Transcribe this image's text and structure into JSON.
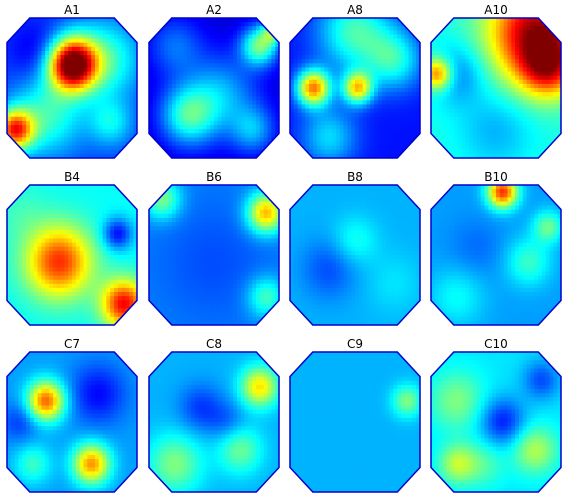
{
  "chart_data": {
    "type": "heatmap",
    "colormap": "jet",
    "color_scale": [
      "#00007f",
      "#0000ff",
      "#007fff",
      "#00ffff",
      "#7fff7f",
      "#ffff00",
      "#ff7f00",
      "#ff0000",
      "#7f0000"
    ],
    "background_color": "#00a5ff",
    "rows": 3,
    "cols": 4,
    "panels": [
      {
        "title": "A1",
        "base": 0.18,
        "blobs": [
          [
            0.5,
            0.33,
            0.13,
            0.85
          ],
          [
            0.06,
            0.8,
            0.1,
            0.6
          ],
          [
            0.75,
            0.3,
            0.2,
            0.25
          ],
          [
            0.3,
            0.7,
            0.2,
            0.25
          ],
          [
            0.25,
            0.25,
            0.15,
            -0.1
          ],
          [
            0.8,
            0.75,
            0.12,
            0.18
          ]
        ]
      },
      {
        "title": "A2",
        "base": 0.08,
        "blobs": [
          [
            0.3,
            0.7,
            0.15,
            0.32
          ],
          [
            0.55,
            0.55,
            0.2,
            0.22
          ],
          [
            0.85,
            0.2,
            0.1,
            0.4
          ],
          [
            0.2,
            0.2,
            0.15,
            0.15
          ],
          [
            0.8,
            0.8,
            0.12,
            0.2
          ],
          [
            0.95,
            0.1,
            0.06,
            0.3
          ]
        ]
      },
      {
        "title": "A8",
        "base": 0.14,
        "blobs": [
          [
            0.18,
            0.5,
            0.09,
            0.6
          ],
          [
            0.52,
            0.5,
            0.08,
            0.5
          ],
          [
            0.5,
            0.1,
            0.2,
            0.3
          ],
          [
            0.8,
            0.3,
            0.15,
            0.25
          ],
          [
            0.3,
            0.85,
            0.15,
            0.2
          ]
        ]
      },
      {
        "title": "A10",
        "base": 0.4,
        "blobs": [
          [
            0.8,
            0.1,
            0.25,
            0.55
          ],
          [
            0.9,
            0.35,
            0.15,
            0.35
          ],
          [
            0.2,
            0.4,
            0.15,
            -0.15
          ],
          [
            0.5,
            0.8,
            0.2,
            -0.1
          ],
          [
            0.05,
            0.4,
            0.08,
            0.4
          ]
        ]
      },
      {
        "title": "B4",
        "base": 0.38,
        "blobs": [
          [
            0.4,
            0.55,
            0.18,
            0.45
          ],
          [
            0.9,
            0.85,
            0.12,
            0.5
          ],
          [
            0.85,
            0.35,
            0.08,
            -0.25
          ],
          [
            0.1,
            0.2,
            0.15,
            0.05
          ]
        ]
      },
      {
        "title": "B6",
        "base": 0.25,
        "blobs": [
          [
            0.5,
            0.55,
            0.3,
            -0.05
          ],
          [
            0.9,
            0.2,
            0.1,
            0.45
          ],
          [
            0.1,
            0.1,
            0.1,
            0.25
          ],
          [
            0.9,
            0.8,
            0.1,
            0.2
          ]
        ]
      },
      {
        "title": "B8",
        "base": 0.3,
        "blobs": [
          [
            0.3,
            0.6,
            0.15,
            -0.1
          ],
          [
            0.5,
            0.4,
            0.12,
            0.1
          ],
          [
            0.8,
            0.7,
            0.15,
            0.05
          ]
        ]
      },
      {
        "title": "B10",
        "base": 0.28,
        "blobs": [
          [
            0.55,
            0.05,
            0.08,
            0.55
          ],
          [
            0.35,
            0.45,
            0.15,
            -0.05
          ],
          [
            0.75,
            0.55,
            0.12,
            0.15
          ],
          [
            0.2,
            0.8,
            0.15,
            0.1
          ],
          [
            0.9,
            0.3,
            0.08,
            0.2
          ]
        ]
      },
      {
        "title": "C7",
        "base": 0.28,
        "blobs": [
          [
            0.3,
            0.35,
            0.1,
            0.5
          ],
          [
            0.65,
            0.8,
            0.1,
            0.45
          ],
          [
            0.7,
            0.3,
            0.15,
            -0.15
          ],
          [
            0.2,
            0.8,
            0.1,
            0.15
          ],
          [
            0.1,
            0.5,
            0.1,
            -0.1
          ]
        ]
      },
      {
        "title": "C8",
        "base": 0.3,
        "blobs": [
          [
            0.4,
            0.4,
            0.12,
            -0.12
          ],
          [
            0.85,
            0.25,
            0.1,
            0.35
          ],
          [
            0.2,
            0.8,
            0.15,
            0.2
          ],
          [
            0.7,
            0.7,
            0.12,
            0.18
          ],
          [
            0.6,
            0.5,
            0.1,
            -0.08
          ]
        ]
      },
      {
        "title": "C9",
        "base": 0.3,
        "blobs": [
          [
            0.9,
            0.35,
            0.08,
            0.2
          ],
          [
            0.5,
            0.5,
            0.3,
            0.0
          ]
        ]
      },
      {
        "title": "C10",
        "base": 0.35,
        "blobs": [
          [
            0.55,
            0.5,
            0.12,
            -0.2
          ],
          [
            0.2,
            0.35,
            0.15,
            0.15
          ],
          [
            0.8,
            0.7,
            0.12,
            0.2
          ],
          [
            0.4,
            0.8,
            0.12,
            0.1
          ],
          [
            0.85,
            0.2,
            0.1,
            -0.15
          ],
          [
            0.2,
            0.8,
            0.1,
            0.2
          ]
        ]
      }
    ]
  }
}
